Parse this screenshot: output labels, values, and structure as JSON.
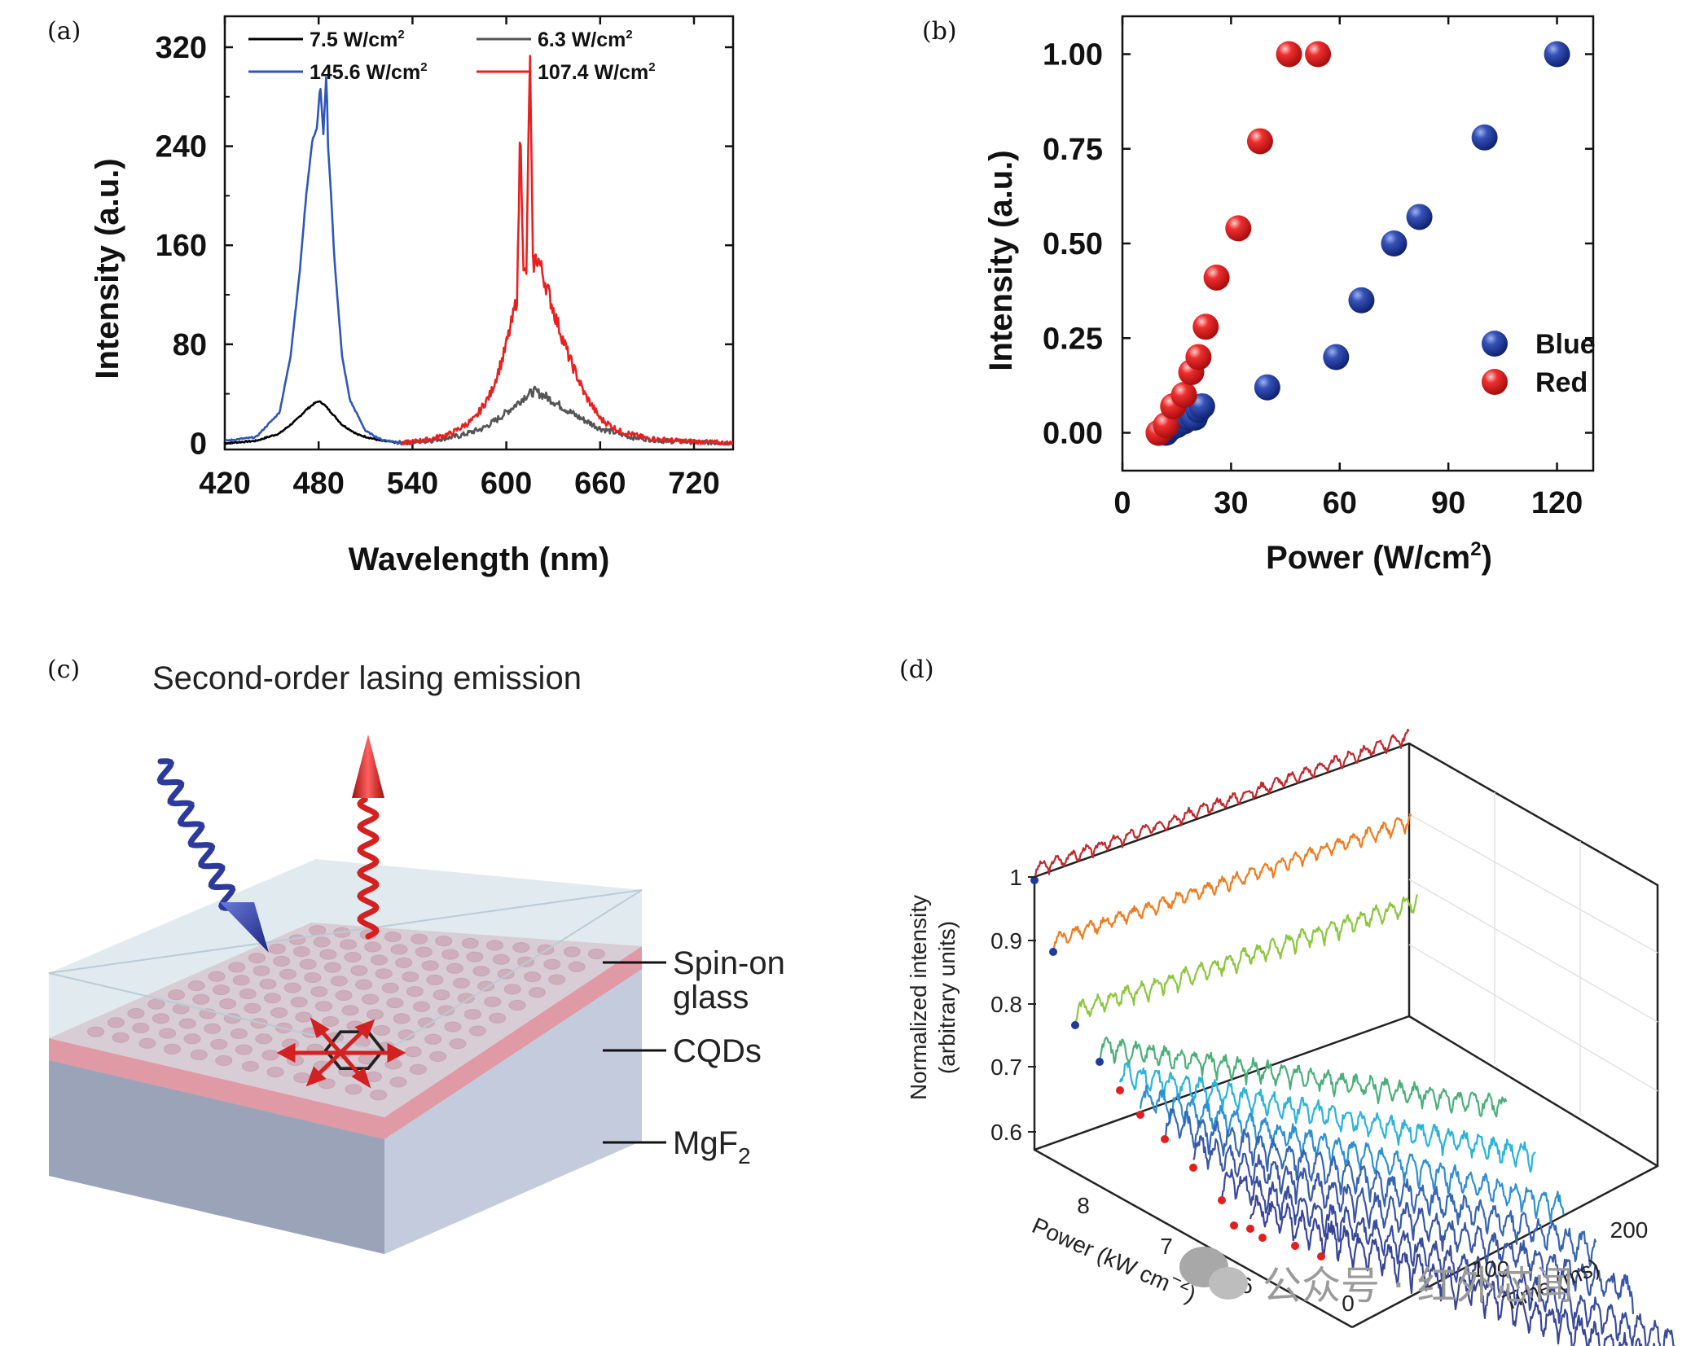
{
  "panels": {
    "a": {
      "letter": "(a)"
    },
    "b": {
      "letter": "(b)"
    },
    "c": {
      "letter": "(c)",
      "title": "Second-order lasing emission",
      "layers": {
        "spin_on_1": "Spin-on",
        "spin_on_2": "glass",
        "cqds": "CQDs",
        "mgf_base": "MgF",
        "mgf_sub": "2"
      }
    },
    "d": {
      "letter": "(d)",
      "zlabel_1": "Normalized intensity",
      "zlabel_2": "(arbitrary units)",
      "power_label": "Power (kW cm",
      "power_label_exp": "−2",
      "power_label_end": ")",
      "time_label": "Time (ms)",
      "z_ticks": [
        "1",
        "0.9",
        "0.8",
        "0.7",
        "0.6"
      ],
      "power_ticks": [
        "8",
        "7",
        "6"
      ],
      "time_ticks": [
        "0",
        "100",
        "200"
      ]
    }
  },
  "watermark": "公众号 · 红外芯闻",
  "chart_data": [
    {
      "type": "line",
      "panel": "a",
      "title": "",
      "xlabel": "Wavelength (nm)",
      "ylabel": "Intensity (a.u.)",
      "xlim": [
        420,
        745
      ],
      "ylim": [
        -5,
        345
      ],
      "xticks": [
        "420",
        "480",
        "540",
        "600",
        "660",
        "720"
      ],
      "yticks": [
        "0",
        "80",
        "160",
        "240",
        "320"
      ],
      "legend_position": "top",
      "legend": [
        {
          "name_main": "7.5 W/cm",
          "name_exp": "2",
          "color": "#000000"
        },
        {
          "name_main": "6.3 W/cm",
          "name_exp": "2",
          "color": "#555555"
        },
        {
          "name_main": "145.6 W/cm",
          "name_exp": "2",
          "color": "#2f56b8"
        },
        {
          "name_main": "107.4 W/cm",
          "name_exp": "2",
          "color": "#e82020"
        }
      ],
      "series": [
        {
          "name": "7.5 W/cm2",
          "color": "#000000",
          "x": [
            420,
            440,
            455,
            465,
            472,
            477,
            480,
            483,
            488,
            495,
            505,
            520,
            535
          ],
          "y": [
            0,
            2,
            8,
            18,
            27,
            32,
            34,
            32,
            25,
            15,
            7,
            2,
            0
          ]
        },
        {
          "name": "6.3 W/cm2",
          "color": "#555555",
          "x": [
            530,
            550,
            570,
            585,
            595,
            605,
            612,
            618,
            625,
            635,
            645,
            660,
            680,
            700,
            720,
            745
          ],
          "y": [
            0,
            2,
            6,
            12,
            20,
            30,
            38,
            42,
            38,
            30,
            22,
            12,
            5,
            2,
            1,
            0
          ]
        },
        {
          "name": "145.6 W/cm2",
          "color": "#2f56b8",
          "x": [
            420,
            440,
            455,
            462,
            468,
            472,
            476,
            479,
            481,
            483,
            485,
            486,
            488,
            490,
            495,
            500,
            510,
            520,
            535
          ],
          "y": [
            2,
            5,
            25,
            70,
            140,
            200,
            245,
            255,
            290,
            250,
            300,
            240,
            200,
            150,
            70,
            35,
            10,
            3,
            0
          ]
        },
        {
          "name": "107.4 W/cm2",
          "color": "#e82020",
          "x": [
            533,
            550,
            565,
            580,
            590,
            598,
            604,
            607,
            609,
            611,
            613,
            615,
            617,
            620,
            625,
            632,
            640,
            650,
            660,
            672,
            690,
            710,
            745
          ],
          "y": [
            0,
            3,
            8,
            20,
            40,
            70,
            100,
            120,
            265,
            135,
            140,
            320,
            145,
            150,
            130,
            100,
            70,
            40,
            20,
            10,
            4,
            2,
            0
          ]
        }
      ]
    },
    {
      "type": "scatter",
      "panel": "b",
      "title": "",
      "xlabel_main": "Power (W/cm",
      "xlabel_exp": "2",
      "xlabel_end": ")",
      "ylabel": "Intensity (a.u.)",
      "xlim": [
        0,
        130
      ],
      "ylim": [
        -0.1,
        1.1
      ],
      "xticks": [
        "0",
        "30",
        "60",
        "90",
        "120"
      ],
      "yticks": [
        "0.00",
        "0.25",
        "0.50",
        "0.75",
        "1.00"
      ],
      "legend_position": "right",
      "series": [
        {
          "name": "Blue",
          "color": "#1f3f9e",
          "x": [
            10,
            12,
            13,
            15,
            17,
            18,
            19,
            20,
            21,
            22,
            40,
            59,
            66,
            75,
            82,
            100,
            120
          ],
          "y": [
            0.0,
            0.0,
            0.01,
            0.02,
            0.03,
            0.04,
            0.05,
            0.04,
            0.06,
            0.07,
            0.12,
            0.2,
            0.35,
            0.5,
            0.57,
            0.78,
            1.0
          ]
        },
        {
          "name": "Red",
          "color": "#e02020",
          "x": [
            10,
            12,
            14,
            17,
            19,
            21,
            23,
            26,
            32,
            38,
            46,
            54
          ],
          "y": [
            0.0,
            0.02,
            0.07,
            0.1,
            0.16,
            0.2,
            0.28,
            0.41,
            0.54,
            0.77,
            1.0,
            1.0
          ]
        }
      ]
    },
    {
      "type": "line",
      "panel": "d",
      "title": "",
      "xlabel": "Time (ms)",
      "ylabel": "Normalized intensity (arbitrary units)",
      "zlabel": "Power (kW cm−2)",
      "zlim": [
        0.55,
        1.05
      ],
      "series": [
        {
          "name": "",
          "color": "#c0282d"
        },
        {
          "name": "",
          "color": "#ee7d22"
        },
        {
          "name": "",
          "color": "#8dc63f"
        },
        {
          "name": "",
          "color": "#4caf7a"
        },
        {
          "name": "",
          "color": "#2bb3d9"
        },
        {
          "name": "",
          "color": "#2f8fd0"
        },
        {
          "name": "",
          "color": "#3766b0"
        },
        {
          "name": "",
          "color": "#3a56a4"
        },
        {
          "name": "",
          "color": "#3a4c9c"
        },
        {
          "name": "",
          "color": "#394594"
        }
      ]
    }
  ]
}
